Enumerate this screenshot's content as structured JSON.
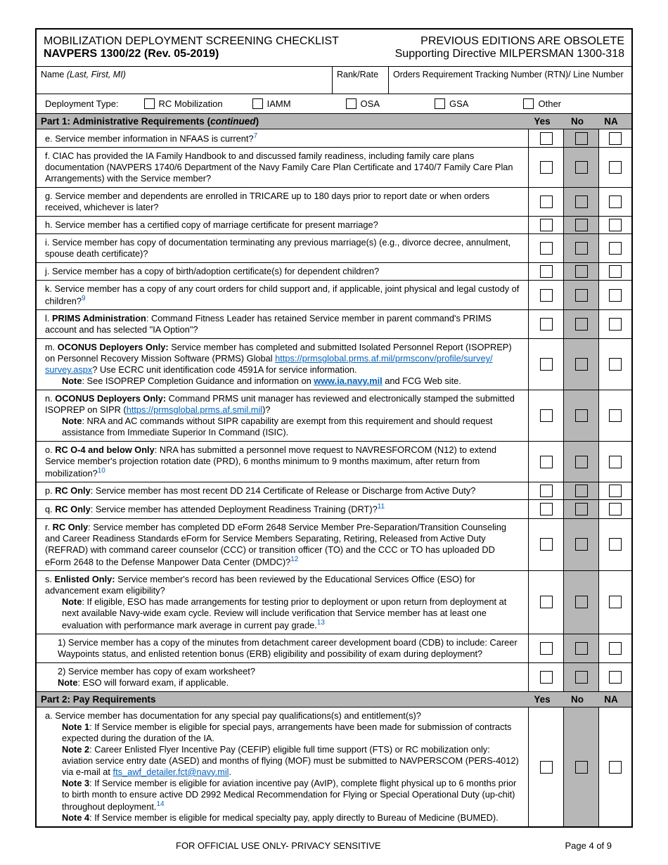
{
  "header": {
    "title": "MOBILIZATION DEPLOYMENT SCREENING CHECKLIST",
    "form_id": "NAVPERS 1300/22 (Rev. 05-2019)",
    "obsolete": "PREVIOUS EDITIONS ARE OBSOLETE",
    "directive": "Supporting Directive MILPERSMAN 1300-318"
  },
  "id_fields": {
    "name_label": "Name ",
    "name_hint": "(Last, First, MI)",
    "rank_label": "Rank/Rate",
    "rtn_label": "Orders Requirement Tracking Number (RTN)/ Line Number"
  },
  "deployment": {
    "label": "Deployment Type:",
    "opts": [
      "RC Mobilization",
      "IAMM",
      "OSA",
      "GSA",
      "Other"
    ]
  },
  "part1": {
    "title": "Part 1: Administrative Requirements (",
    "cont": "continued",
    "close": ")",
    "yes": "Yes",
    "no": "No",
    "na": "NA"
  },
  "rows": {
    "e": {
      "t": "e. Service member information in NFAAS is current?",
      "sup": "7"
    },
    "f": {
      "t": "f. CIAC has provided the IA Family Handbook to and discussed family readiness, including family care plans documentation (NAVPERS 1740/6 Department of the Navy Family Care Plan Certificate and 1740/7 Family Care Plan Arrangements) with the Service member?"
    },
    "g": {
      "t": "g. Service member and dependents are enrolled in TRICARE up to 180 days prior to report date or when orders received, whichever is later?"
    },
    "h": {
      "t": "h. Service member has a certified copy of marriage certificate for present marriage?"
    },
    "i": {
      "t": "i. Service member has copy of documentation terminating any previous marriage(s) (e.g., divorce decree, annulment, spouse death certificate)?"
    },
    "j": {
      "t": "j. Service member has a copy of birth/adoption certificate(s) for dependent children?"
    },
    "k": {
      "t": "k. Service member has a copy of any court orders for child support and, if applicable, joint physical and legal custody of children?",
      "sup": "9"
    },
    "l_pre": "l. ",
    "l_b": "PRIMS Administration",
    "l_post": ":  Command Fitness Leader has retained Service member in parent command's PRIMS account and has selected \"IA Option\"?",
    "m_pre": "m. ",
    "m_b": "OCONUS Deployers Only:",
    "m_post1": "  Service member has completed and submitted Isolated Personnel Report (ISOPREP) on Personnel Recovery Mission Software (PRMS) Global ",
    "m_link1": "https://prmsglobal.prms.af.mil/prmsconv/profile/survey/",
    "m_link1b": "survey.aspx",
    "m_post2": "? Use ECRC unit identification code 4591A for service information.",
    "m_note_b": "Note",
    "m_note": ":  See ISOPREP Completion Guidance and information on ",
    "m_link2": "www.ia.navy.mil",
    "m_note2": " and FCG Web site.",
    "n_pre": "n. ",
    "n_b": "OCONUS Deployers Only:",
    "n_post1": "  Command PRMS unit manager has reviewed and electronically stamped the submitted ISOPREP on SIPR (",
    "n_link": "https://prmsglobal.prms.af.smil.mil",
    "n_post2": ")?",
    "n_note_b": "Note",
    "n_note": ":  NRA and AC commands without SIPR capability are exempt from this requirement and should request assistance from Immediate Superior In Command (ISIC).",
    "o_pre": "o. ",
    "o_b": "RC O-4 and below Only",
    "o_post": ":  NRA has submitted a personnel move request to NAVRESFORCOM (N12) to extend Service member's projection rotation date (PRD), 6 months minimum to 9 months maximum, after return from mobilization?",
    "o_sup": "10",
    "p_pre": "p. ",
    "p_b": "RC Only",
    "p_post": ":  Service member has most recent DD 214 Certificate of Release or Discharge from Active Duty?",
    "q_pre": "q. ",
    "q_b": "RC Only",
    "q_post": ":  Service member has attended Deployment Readiness Training (DRT)?",
    "q_sup": "11",
    "r_pre": "r. ",
    "r_b": "RC Only",
    "r_post": ":  Service member has completed DD eForm 2648 Service Member Pre-Separation/Transition Counseling and Career Readiness Standards eForm for Service Members Separating, Retiring, Released from Active Duty (REFRAD) with command career counselor (CCC) or transition officer (TO) and the CCC or TO has uploaded DD eForm 2648 to the Defense Manpower Data Center (DMDC)?",
    "r_sup": "12",
    "s_pre": "s. ",
    "s_b": "Enlisted Only:",
    "s_post": "  Service member's record has been reviewed by the Educational Services Office (ESO) for advancement exam eligibility?",
    "s_note_b": "Note",
    "s_note": ":  If eligible, ESO has made arrangements for testing prior to deployment or upon return from deployment at next available Navy-wide exam cycle.  Review will include verification that Service member has at least one evaluation with performance mark average in current pay grade.",
    "s_sup": "13",
    "s1": "1) Service member has a copy of the minutes from detachment career development board (CDB) to include: Career Waypoints status, and enlisted retention bonus (ERB) eligibility and possibility of exam during deployment?",
    "s2": "2) Service member has copy of exam worksheet?",
    "s2_note_b": "Note",
    "s2_note": ":  ESO will forward exam, if applicable."
  },
  "part2": {
    "title": "Part 2: Pay Requirements",
    "yes": "Yes",
    "no": "No",
    "na": "NA"
  },
  "p2a": {
    "main": "a. Service member has documentation for any special pay qualifications(s) and entitlement(s)?",
    "n1b": "Note 1",
    "n1": ":  If Service member is eligible for special pays, arrangements have been made for submission of contracts expected during the duration of the IA.",
    "n2b": "Note 2",
    "n2": ":  Career Enlisted Flyer Incentive Pay (CEFIP) eligible full time support (FTS) or RC mobilization only:  aviation service entry date (ASED) and months of flying (MOF) must be submitted to NAVPERSCOM (PERS-4012) via e-mail at ",
    "n2link": "fts_awf_detailer.fct@navy.mil",
    "n2end": ".",
    "n3b": "Note 3",
    "n3": ":  If Service member is eligible for aviation incentive pay (AvIP), complete flight physical up to 6 months prior to birth month to ensure active DD 2992 Medical Recommendation for Flying or Special Operational Duty (up-chit) throughout deployment.",
    "n3sup": "14",
    "n4b": "Note 4",
    "n4": ":  If Service member is eligible for medical specialty pay, apply directly to Bureau of Medicine (BUMED)."
  },
  "footer": {
    "fouo": "FOR OFFICIAL USE ONLY- PRIVACY SENSITIVE",
    "page": "Page 4 of 9"
  }
}
